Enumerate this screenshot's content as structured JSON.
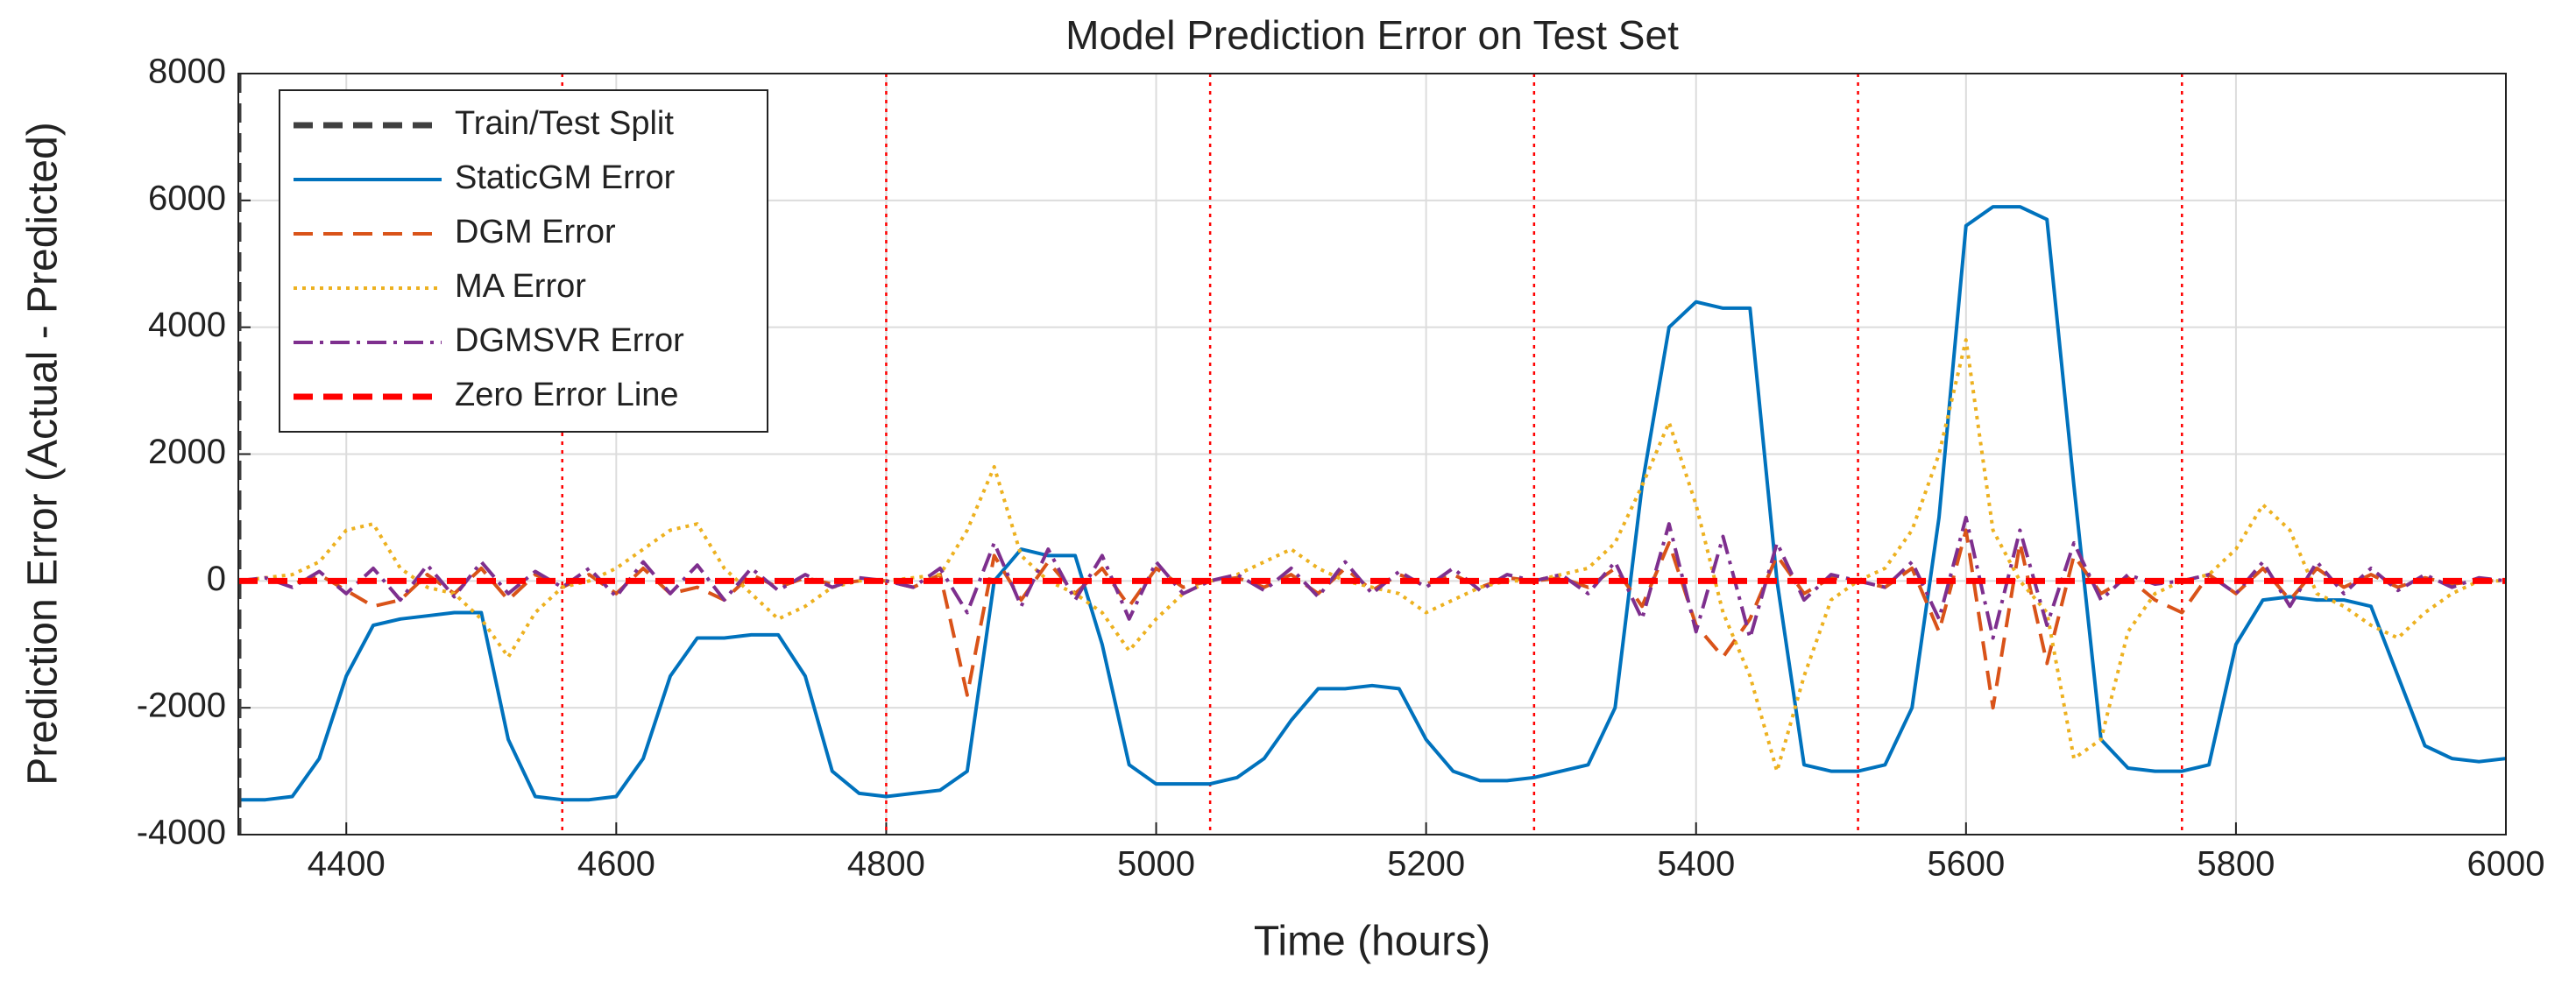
{
  "chart_data": {
    "type": "line",
    "title": "Model Prediction Error on Test Set",
    "xlabel": "Time (hours)",
    "ylabel": "Prediction Error (Actual - Predicted)",
    "x": [
      4320,
      4340,
      4360,
      4380,
      4400,
      4420,
      4440,
      4460,
      4480,
      4500,
      4520,
      4540,
      4560,
      4580,
      4600,
      4620,
      4640,
      4660,
      4680,
      4700,
      4720,
      4740,
      4760,
      4780,
      4800,
      4820,
      4840,
      4860,
      4880,
      4900,
      4920,
      4940,
      4960,
      4980,
      5000,
      5020,
      5040,
      5060,
      5080,
      5100,
      5120,
      5140,
      5160,
      5180,
      5200,
      5220,
      5240,
      5260,
      5280,
      5300,
      5320,
      5340,
      5360,
      5380,
      5400,
      5420,
      5440,
      5460,
      5480,
      5500,
      5520,
      5540,
      5560,
      5580,
      5600,
      5620,
      5640,
      5660,
      5680,
      5700,
      5720,
      5740,
      5760,
      5780,
      5800,
      5820,
      5840,
      5860,
      5880,
      5900,
      5920,
      5940,
      5960,
      5980,
      6000
    ],
    "series": [
      {
        "name": "StaticGM Error",
        "color": "#0072bd",
        "linestyle": "solid",
        "values": [
          -3450,
          -3450,
          -3400,
          -2800,
          -1500,
          -700,
          -600,
          -550,
          -500,
          -500,
          -2500,
          -3400,
          -3450,
          -3450,
          -3400,
          -2800,
          -1500,
          -900,
          -900,
          -850,
          -850,
          -1500,
          -3000,
          -3350,
          -3400,
          -3350,
          -3300,
          -3000,
          0,
          500,
          400,
          400,
          -1000,
          -2900,
          -3200,
          -3200,
          -3200,
          -3100,
          -2800,
          -2200,
          -1700,
          -1700,
          -1650,
          -1700,
          -2500,
          -3000,
          -3150,
          -3150,
          -3100,
          -3000,
          -2900,
          -2000,
          1500,
          4000,
          4400,
          4300,
          4300,
          0,
          -2900,
          -3000,
          -3000,
          -2900,
          -2000,
          1000,
          5600,
          5900,
          5900,
          5700,
          1500,
          -2500,
          -2950,
          -3000,
          -3000,
          -2900,
          -1000,
          -300,
          -250,
          -300,
          -300,
          -400,
          -1500,
          -2600,
          -2800,
          -2850,
          -2800
        ]
      },
      {
        "name": "DGM Error",
        "color": "#d95319",
        "linestyle": "dashed",
        "values": [
          0,
          20,
          -50,
          100,
          -150,
          -400,
          -300,
          100,
          -200,
          200,
          -300,
          100,
          -100,
          100,
          -200,
          200,
          -200,
          -100,
          -300,
          100,
          -100,
          50,
          -50,
          0,
          0,
          -100,
          100,
          -1800,
          400,
          -300,
          300,
          -200,
          200,
          -400,
          200,
          -100,
          0,
          50,
          -100,
          100,
          -200,
          200,
          -150,
          100,
          -50,
          100,
          -100,
          50,
          0,
          50,
          -100,
          200,
          -400,
          600,
          -700,
          -1200,
          -600,
          400,
          -200,
          50,
          0,
          -100,
          200,
          -800,
          800,
          -2000,
          600,
          -1300,
          400,
          -200,
          50,
          -300,
          -500,
          100,
          -200,
          200,
          -300,
          200,
          -100,
          100,
          -100,
          50,
          -50,
          0,
          0
        ]
      },
      {
        "name": "MA Error",
        "color": "#edb120",
        "linestyle": "dotted",
        "values": [
          0,
          50,
          100,
          300,
          800,
          900,
          200,
          -100,
          -200,
          -600,
          -1200,
          -500,
          -100,
          0,
          200,
          500,
          800,
          900,
          200,
          -200,
          -600,
          -400,
          -100,
          0,
          0,
          50,
          100,
          800,
          1800,
          400,
          0,
          -200,
          -500,
          -1100,
          -600,
          -200,
          0,
          100,
          300,
          500,
          200,
          0,
          -100,
          -200,
          -500,
          -300,
          -100,
          0,
          0,
          100,
          200,
          600,
          1500,
          2500,
          1200,
          -500,
          -1500,
          -3000,
          -1500,
          -300,
          0,
          200,
          800,
          2000,
          3800,
          800,
          0,
          -500,
          -2800,
          -2500,
          -800,
          -200,
          0,
          100,
          500,
          1200,
          800,
          -200,
          -400,
          -700,
          -900,
          -500,
          -200,
          0,
          0
        ]
      },
      {
        "name": "DGMSVR Error",
        "color": "#7e2f8e",
        "linestyle": "dashdot",
        "values": [
          0,
          50,
          -100,
          150,
          -200,
          200,
          -300,
          250,
          -250,
          300,
          -200,
          150,
          -100,
          200,
          -250,
          300,
          -200,
          250,
          -300,
          200,
          -150,
          100,
          -100,
          50,
          0,
          -100,
          200,
          -500,
          600,
          -400,
          500,
          -300,
          400,
          -600,
          300,
          -200,
          0,
          100,
          -150,
          200,
          -250,
          300,
          -200,
          150,
          -100,
          200,
          -150,
          100,
          0,
          100,
          -200,
          300,
          -600,
          900,
          -800,
          700,
          -900,
          600,
          -300,
          100,
          0,
          -100,
          300,
          -600,
          1000,
          -900,
          800,
          -700,
          600,
          -300,
          100,
          -50,
          0,
          100,
          -200,
          300,
          -400,
          300,
          -200,
          200,
          -150,
          100,
          -100,
          50,
          0
        ]
      }
    ],
    "reference_lines": [
      {
        "name": "Train/Test Split",
        "x": 4320,
        "color": "#404040",
        "linestyle": "dashed"
      },
      {
        "name": "Zero Error Line",
        "y": 0,
        "color": "#ff0000",
        "linestyle": "dashed"
      }
    ],
    "vlines": {
      "x": [
        4560,
        4800,
        5040,
        5280,
        5520,
        5760
      ],
      "color": "#ff0000",
      "linestyle": "dotted"
    },
    "xlim": [
      4320,
      6000
    ],
    "xticks": [
      4400,
      4600,
      4800,
      5000,
      5200,
      5400,
      5600,
      5800,
      6000
    ],
    "ylim": [
      -4000,
      8000
    ],
    "yticks": [
      -4000,
      -2000,
      0,
      2000,
      4000,
      6000,
      8000
    ],
    "grid": true,
    "legend": "northwest"
  }
}
